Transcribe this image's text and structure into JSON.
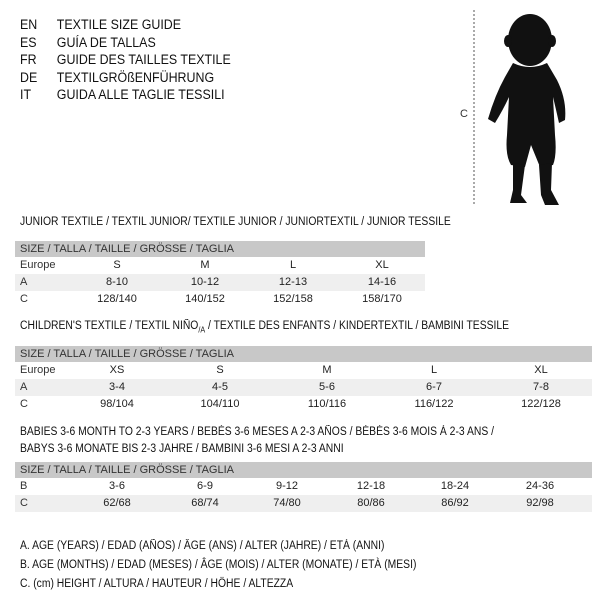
{
  "languages": [
    {
      "code": "EN",
      "text": "TEXTILE SIZE GUIDE"
    },
    {
      "code": "ES",
      "text": "GUÍA DE TALLAS"
    },
    {
      "code": "FR",
      "text": "GUIDE DES TAILLES TEXTILE"
    },
    {
      "code": "DE",
      "text": "TEXTILGRÖßENFÜHRUNG"
    },
    {
      "code": "IT",
      "text": "GUIDA ALLE TAGLIE TESSILI"
    }
  ],
  "figure": {
    "height_label": "C"
  },
  "junior": {
    "title": "JUNIOR TEXTILE / TEXTIL JUNIOR/ TEXTILE JUNIOR / JUNIORTEXTIL / JUNIOR TESSILE",
    "header": "SIZE / TALLA / TAILLE / GRÖSSE / TAGLIA",
    "rows": [
      {
        "label": "Europe",
        "cells": [
          "S",
          "M",
          "L",
          "XL"
        ]
      },
      {
        "label": "A",
        "cells": [
          "8-10",
          "10-12",
          "12-13",
          "14-16"
        ]
      },
      {
        "label": "C",
        "cells": [
          "128/140",
          "140/152",
          "152/158",
          "158/170"
        ]
      }
    ]
  },
  "children": {
    "title_a": "CHILDREN'S TEXTILE / TEXTIL NIÑO",
    "title_sub": "/A",
    "title_b": " / TEXTILE DES ENFANTS / KINDERTEXTIL / BAMBINI TESSILE",
    "header": "SIZE / TALLA / TAILLE / GRÖSSE / TAGLIA",
    "rows": [
      {
        "label": "Europe",
        "cells": [
          "XS",
          "S",
          "M",
          "L",
          "XL"
        ]
      },
      {
        "label": "A",
        "cells": [
          "3-4",
          "4-5",
          "5-6",
          "6-7",
          "7-8"
        ]
      },
      {
        "label": "C",
        "cells": [
          "98/104",
          "104/110",
          "110/116",
          "116/122",
          "122/128"
        ]
      }
    ]
  },
  "babies": {
    "title_line1": "BABIES 3-6 MONTH TO 2-3 YEARS / BEBÉS 3-6 MESES A 2-3 AÑOS / BÉBÉS 3-6 MOIS À 2-3 ANS /",
    "title_line2": "BABYS 3-6 MONATE BIS 2-3 JAHRE / BAMBINI 3-6 MESI A 2-3 ANNI",
    "header": "SIZE / TALLA / TAILLE / GRÖSSE / TAGLIA",
    "rows": [
      {
        "label": "B",
        "cells": [
          "3-6",
          "6-9",
          "9-12",
          "12-18",
          "18-24",
          "24-36"
        ]
      },
      {
        "label": "C",
        "cells": [
          "62/68",
          "68/74",
          "74/80",
          "80/86",
          "86/92",
          "92/98"
        ]
      }
    ]
  },
  "legend": [
    "A. AGE (YEARS) / EDAD (AÑOS) / ÂGE (ANS) / ALTER (JAHRE) / ETÀ (ANNI)",
    "B. AGE (MONTHS) / EDAD (MESES) / ÂGE (MOIS) / ALTER (MONATE) / ETÀ (MESI)",
    "C. (cm) HEIGHT / ALTURA / HAUTEUR / HÖHE / ALTEZZA"
  ]
}
